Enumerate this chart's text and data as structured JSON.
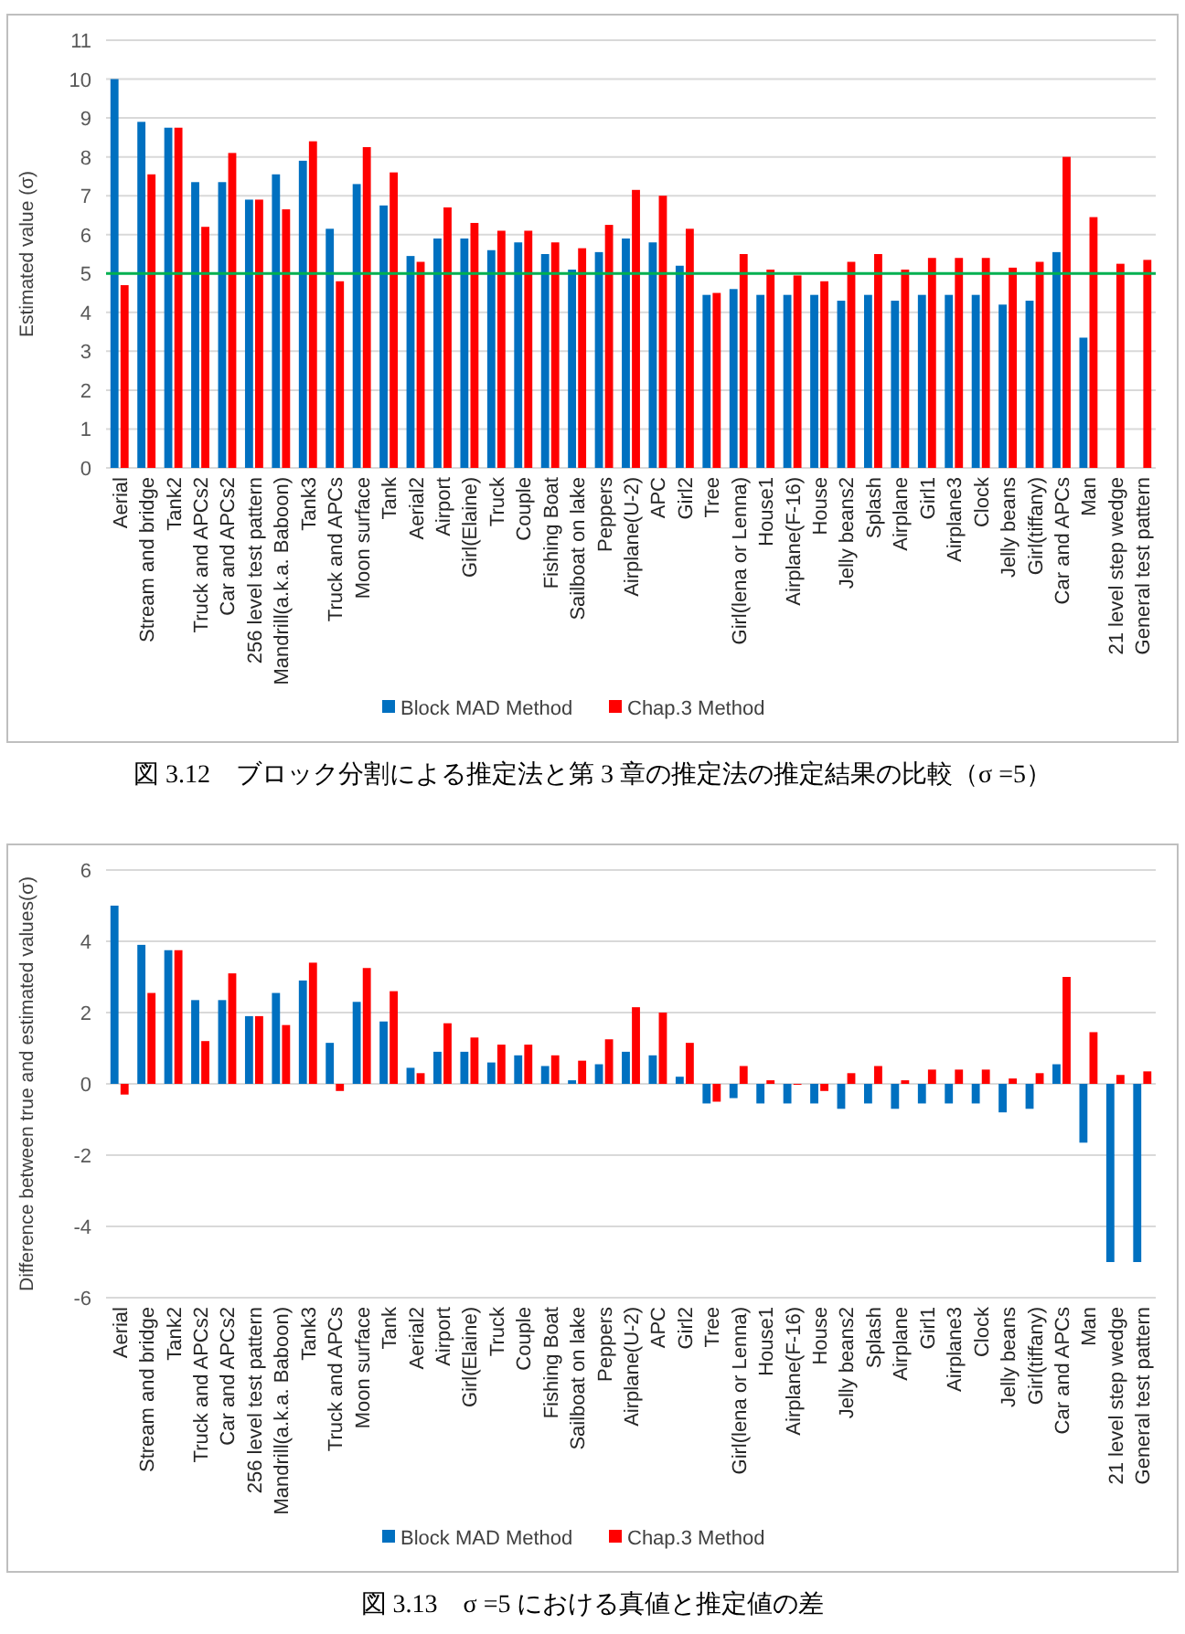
{
  "chart_data": [
    {
      "type": "bar",
      "title": "図 3.12　ブロック分割による推定法と第 3 章の推定法の推定結果の比較（σ =5）",
      "ylabel": "Estimated value (σ)",
      "categories": [
        "Aerial",
        "Stream and bridge",
        "Tank2",
        "Truck and APCs2",
        "Car and APCs2",
        "256 level test pattern",
        "Mandrill(a.k.a. Baboon)",
        "Tank3",
        "Truck and APCs",
        "Moon surface",
        "Tank",
        "Aerial2",
        "Airport",
        "Girl(Elaine)",
        "Truck",
        "Couple",
        "Fishing Boat",
        "Sailboat on lake",
        "Peppers",
        "Airplane(U-2)",
        "APC",
        "Girl2",
        "Tree",
        "Girl(lena or Lenna)",
        "House1",
        "Airplane(F-16)",
        "House",
        "Jelly beans2",
        "Splash",
        "Airplane",
        "Girl1",
        "Airplane3",
        "Clock",
        "Jelly beans",
        "Girl(tiffany)",
        "Car and APCs",
        "Man",
        "21 level step wedge",
        "General test pattern"
      ],
      "series": [
        {
          "name": "Block MAD Method",
          "color": "#0070c0",
          "values": [
            10.0,
            8.9,
            8.75,
            7.35,
            7.35,
            6.9,
            7.55,
            7.9,
            6.15,
            7.3,
            6.75,
            5.45,
            5.9,
            5.9,
            5.6,
            5.8,
            5.5,
            5.1,
            5.55,
            5.9,
            5.8,
            5.2,
            4.45,
            4.6,
            4.45,
            4.45,
            4.45,
            4.3,
            4.45,
            4.3,
            4.45,
            4.45,
            4.45,
            4.2,
            4.3,
            5.55,
            3.35,
            null,
            null
          ]
        },
        {
          "name": "Chap.3 Method",
          "color": "#ff0000",
          "values": [
            4.7,
            7.55,
            8.75,
            6.2,
            8.1,
            6.9,
            6.65,
            8.4,
            4.8,
            8.25,
            7.6,
            5.3,
            6.7,
            6.3,
            6.1,
            6.1,
            5.8,
            5.65,
            6.25,
            7.15,
            7.0,
            6.15,
            4.5,
            5.5,
            5.1,
            4.95,
            4.8,
            5.3,
            5.5,
            5.1,
            5.4,
            5.4,
            5.4,
            5.15,
            5.3,
            8.0,
            6.45,
            5.25,
            5.35
          ]
        }
      ],
      "ylim": [
        0,
        11
      ],
      "yticks": [
        0,
        1,
        2,
        3,
        4,
        5,
        6,
        7,
        8,
        9,
        10,
        11
      ],
      "grid": "y",
      "legend": "bottom",
      "ref_lines": [
        {
          "axis": "y",
          "value": 5,
          "color": "#00b050"
        }
      ]
    },
    {
      "type": "bar",
      "title": "図 3.13　σ =5 における真値と推定値の差",
      "ylabel": "Difference between true and estimated values(σ)",
      "categories": [
        "Aerial",
        "Stream and bridge",
        "Tank2",
        "Truck and APCs2",
        "Car and APCs2",
        "256 level test pattern",
        "Mandrill(a.k.a. Baboon)",
        "Tank3",
        "Truck and APCs",
        "Moon surface",
        "Tank",
        "Aerial2",
        "Airport",
        "Girl(Elaine)",
        "Truck",
        "Couple",
        "Fishing Boat",
        "Sailboat on lake",
        "Peppers",
        "Airplane(U-2)",
        "APC",
        "Girl2",
        "Tree",
        "Girl(lena or Lenna)",
        "House1",
        "Airplane(F-16)",
        "House",
        "Jelly beans2",
        "Splash",
        "Airplane",
        "Girl1",
        "Airplane3",
        "Clock",
        "Jelly beans",
        "Girl(tiffany)",
        "Car and APCs",
        "Man",
        "21 level step wedge",
        "General test pattern"
      ],
      "series": [
        {
          "name": "Block MAD Method",
          "color": "#0070c0",
          "values": [
            5.0,
            3.9,
            3.75,
            2.35,
            2.35,
            1.9,
            2.55,
            2.9,
            1.15,
            2.3,
            1.75,
            0.45,
            0.9,
            0.9,
            0.6,
            0.8,
            0.5,
            0.1,
            0.55,
            0.9,
            0.8,
            0.2,
            -0.55,
            -0.4,
            -0.55,
            -0.55,
            -0.55,
            -0.7,
            -0.55,
            -0.7,
            -0.55,
            -0.55,
            -0.55,
            -0.8,
            -0.7,
            0.55,
            -1.65,
            -5.0,
            -5.0
          ]
        },
        {
          "name": "Chap.3 Method",
          "color": "#ff0000",
          "values": [
            -0.3,
            2.55,
            3.75,
            1.2,
            3.1,
            1.9,
            1.65,
            3.4,
            -0.2,
            3.25,
            2.6,
            0.3,
            1.7,
            1.3,
            1.1,
            1.1,
            0.8,
            0.65,
            1.25,
            2.15,
            2.0,
            1.15,
            -0.5,
            0.5,
            0.1,
            0,
            -0.2,
            0.3,
            0.5,
            0.1,
            0.4,
            0.4,
            0.4,
            0.15,
            0.3,
            3.0,
            1.45,
            0.25,
            0.35
          ]
        }
      ],
      "ylim": [
        -6,
        6
      ],
      "yticks": [
        -6,
        -4,
        -2,
        0,
        2,
        4,
        6
      ],
      "grid": "y",
      "legend": "bottom"
    }
  ]
}
